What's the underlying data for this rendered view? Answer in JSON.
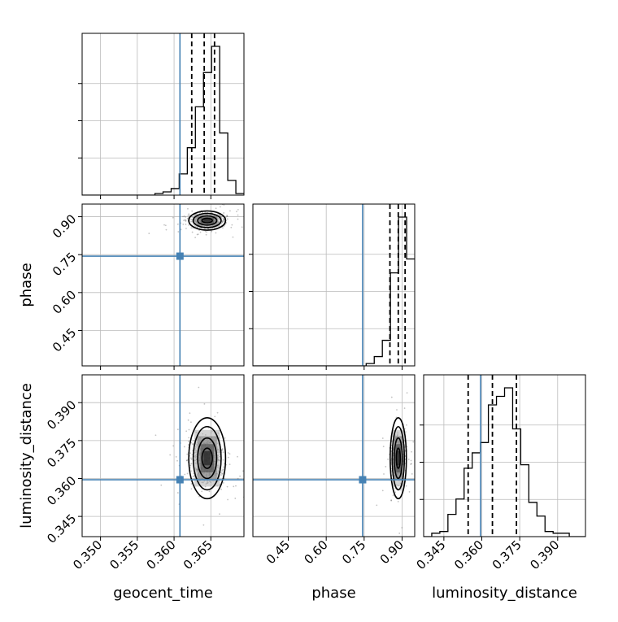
{
  "chart_data": {
    "type": "corner",
    "parameters": [
      "geocent_time",
      "phase",
      "luminosity_distance"
    ],
    "axes": {
      "geocent_time": {
        "label": "geocent_time",
        "range": [
          0.3475,
          0.3695
        ],
        "ticks": [
          0.35,
          0.355,
          0.36,
          0.365
        ],
        "tick_labels": [
          "0.350",
          "0.355",
          "0.360",
          "0.365"
        ]
      },
      "phase": {
        "label": "phase",
        "range": [
          0.31,
          0.95
        ],
        "ticks": [
          0.45,
          0.6,
          0.75,
          0.9
        ],
        "tick_labels": [
          "0.45",
          "0.60",
          "0.75",
          "0.90"
        ]
      },
      "luminosity_distance": {
        "label": "luminosity_distance",
        "range": [
          0.337,
          0.401
        ],
        "ticks": [
          0.345,
          0.36,
          0.375,
          0.39
        ],
        "tick_labels": [
          "0.345",
          "0.360",
          "0.375",
          "0.390"
        ]
      }
    },
    "injection": {
      "geocent_time": 0.3608,
      "phase": 0.744,
      "luminosity_distance": 0.3595
    },
    "colors": {
      "injection": "#4682b4",
      "histogram": "#000000",
      "grid": "#bbbbbb"
    },
    "grid": true,
    "marginals": [
      {
        "param": "geocent_time",
        "bins_lo": [
          0.3475,
          0.3486,
          0.3497,
          0.3508,
          0.3519,
          0.353,
          0.3541,
          0.3552,
          0.3563,
          0.3574,
          0.3585,
          0.3596,
          0.3607,
          0.3618,
          0.3629,
          0.364,
          0.3651,
          0.3662,
          0.3673,
          0.3684
        ],
        "counts": [
          0,
          0,
          0,
          0,
          0,
          0,
          0,
          0,
          0,
          1,
          2,
          4,
          13,
          29,
          54,
          75,
          91,
          38,
          9,
          1
        ],
        "quantiles": [
          0.3624,
          0.3641,
          0.3655
        ]
      },
      {
        "param": "phase",
        "bins_lo": [
          0.31,
          0.342,
          0.374,
          0.406,
          0.438,
          0.47,
          0.502,
          0.534,
          0.566,
          0.598,
          0.63,
          0.662,
          0.694,
          0.726,
          0.758,
          0.79,
          0.822,
          0.854,
          0.886,
          0.918
        ],
        "counts": [
          0,
          0,
          0,
          0,
          0,
          0,
          0,
          0,
          0,
          0,
          0,
          0,
          0,
          0,
          1,
          4,
          11,
          40,
          64,
          46
        ],
        "quantiles": [
          0.852,
          0.885,
          0.912
        ]
      },
      {
        "param": "luminosity_distance",
        "bins_lo": [
          0.337,
          0.3402,
          0.3434,
          0.3466,
          0.3498,
          0.353,
          0.3562,
          0.3594,
          0.3626,
          0.3658,
          0.369,
          0.3722,
          0.3754,
          0.3786,
          0.3818,
          0.385,
          0.3882,
          0.3914,
          0.3946,
          0.3978
        ],
        "counts": [
          0,
          2,
          3,
          13,
          22,
          40,
          49,
          55,
          77,
          82,
          87,
          63,
          42,
          20,
          12,
          3,
          2,
          2,
          0,
          0
        ],
        "quantiles": [
          0.3546,
          0.3642,
          0.3737
        ]
      }
    ],
    "joint": [
      {
        "x": "geocent_time",
        "y": "phase",
        "peak": [
          0.3645,
          0.885
        ],
        "spread": [
          0.0016,
          0.02
        ],
        "contour_halfwidths": [
          [
            0.0007,
            0.009
          ],
          [
            0.0013,
            0.018
          ],
          [
            0.0019,
            0.028
          ],
          [
            0.0025,
            0.038
          ]
        ]
      },
      {
        "x": "geocent_time",
        "y": "luminosity_distance",
        "peak": [
          0.3645,
          0.368
        ],
        "spread": [
          0.0016,
          0.006
        ],
        "contour_halfwidths": [
          [
            0.0007,
            0.004
          ],
          [
            0.0013,
            0.008
          ],
          [
            0.0019,
            0.0125
          ],
          [
            0.0025,
            0.016
          ]
        ]
      },
      {
        "x": "phase",
        "y": "luminosity_distance",
        "peak": [
          0.885,
          0.368
        ],
        "spread": [
          0.017,
          0.006
        ],
        "contour_halfwidths": [
          [
            0.008,
            0.004
          ],
          [
            0.016,
            0.008
          ],
          [
            0.024,
            0.0125
          ],
          [
            0.032,
            0.016
          ]
        ]
      }
    ]
  }
}
